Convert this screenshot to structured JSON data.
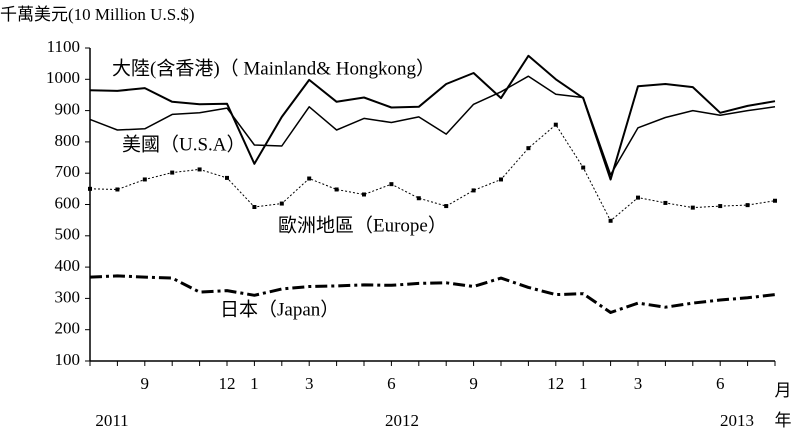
{
  "chart_data": {
    "type": "line",
    "y_label": "千萬美元(10 Million U.S.$)",
    "x_unit": "月",
    "year_unit": "年",
    "years": [
      "2011",
      "2012",
      "2013"
    ],
    "categories": [
      null,
      null,
      "9",
      null,
      null,
      "12",
      "1",
      null,
      "3",
      null,
      null,
      "6",
      null,
      null,
      "9",
      null,
      null,
      "12",
      "1",
      null,
      "3",
      null,
      null,
      "6",
      null,
      null
    ],
    "ylim": [
      100,
      1100
    ],
    "yticks": [
      100,
      200,
      300,
      400,
      500,
      600,
      700,
      800,
      900,
      1000,
      1100
    ],
    "series": [
      {
        "name": "大陸(含香港)（ Mainland& Hongkong）",
        "color": "#000000",
        "style": "solid",
        "width": 2,
        "values": [
          965,
          963,
          972,
          928,
          920,
          922,
          730,
          880,
          998,
          928,
          942,
          910,
          912,
          985,
          1020,
          940,
          1075,
          1000,
          940,
          680,
          978,
          985,
          975,
          893,
          915,
          930
        ]
      },
      {
        "name": "美國（U.S.A）",
        "color": "#000000",
        "style": "solid",
        "width": 1.5,
        "values": [
          872,
          838,
          842,
          888,
          893,
          908,
          790,
          787,
          912,
          838,
          875,
          862,
          880,
          825,
          920,
          960,
          1010,
          952,
          942,
          695,
          845,
          878,
          900,
          885,
          900,
          912
        ]
      },
      {
        "name": "歐洲地區（Europe）",
        "color": "#000000",
        "style": "dotted-square",
        "width": 1,
        "values": [
          650,
          648,
          680,
          702,
          712,
          685,
          592,
          603,
          683,
          648,
          632,
          665,
          620,
          595,
          645,
          680,
          780,
          855,
          718,
          548,
          622,
          605,
          590,
          595,
          598,
          612
        ]
      },
      {
        "name": "日本（Japan）",
        "color": "#000000",
        "style": "dash-dot",
        "width": 3,
        "values": [
          368,
          372,
          368,
          365,
          320,
          325,
          310,
          330,
          338,
          340,
          343,
          342,
          348,
          350,
          338,
          365,
          335,
          312,
          315,
          255,
          285,
          272,
          285,
          295,
          302,
          312
        ]
      }
    ]
  }
}
